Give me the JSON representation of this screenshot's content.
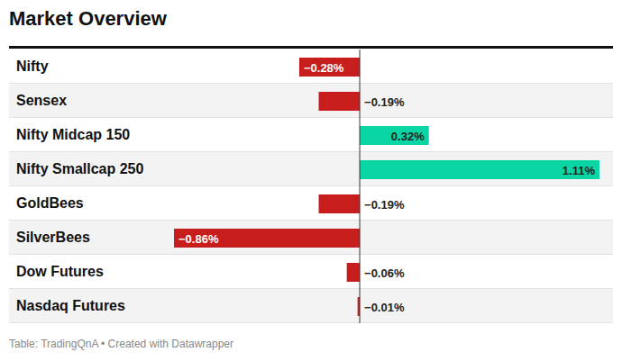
{
  "chart_data": {
    "type": "bar",
    "orientation": "horizontal",
    "title": "Market Overview",
    "annotations": [
      "Table: TradingQnA • Created with Datawrapper"
    ],
    "categories": [
      "Nifty",
      "Sensex",
      "Nifty Midcap 150",
      "Nifty Smallcap 250",
      "GoldBees",
      "SilverBees",
      "Dow Futures",
      "Nasdaq Futures"
    ],
    "values": [
      -0.28,
      -0.19,
      0.32,
      1.11,
      -0.19,
      -0.86,
      -0.06,
      -0.01
    ],
    "value_labels": [
      "−0.28%",
      "−0.19%",
      "0.32%",
      "1.11%",
      "−0.19%",
      "−0.86%",
      "−0.06%",
      "−0.01%"
    ],
    "colors": [
      "#c71e1d",
      "#c71e1d",
      "#09d6a4",
      "#09d6a4",
      "#c71e1d",
      "#c71e1d",
      "#c71e1d",
      "#c71e1d"
    ],
    "xlim": [
      -0.86,
      1.11
    ],
    "xticks": [
      0
    ],
    "tick_labels": false,
    "grid": false,
    "data_labels": true
  }
}
